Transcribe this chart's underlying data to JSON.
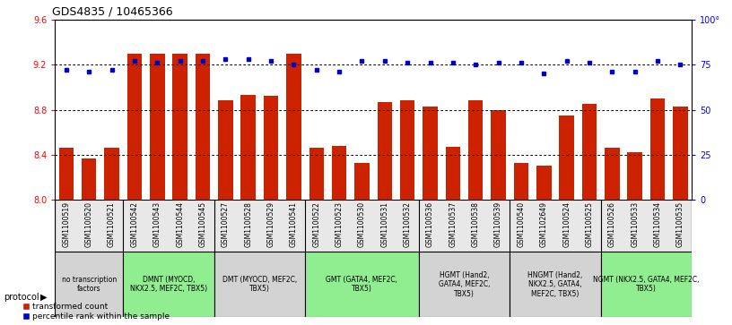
{
  "title": "GDS4835 / 10465366",
  "bar_values": [
    8.46,
    8.37,
    8.46,
    9.3,
    9.3,
    9.3,
    9.3,
    8.88,
    8.93,
    8.92,
    9.3,
    8.46,
    8.48,
    8.33,
    8.87,
    8.88,
    8.83,
    8.47,
    8.88,
    8.8,
    8.33,
    8.3,
    8.75,
    8.85,
    8.46,
    8.42,
    8.9,
    8.83
  ],
  "percentile_values": [
    72,
    71,
    72,
    77,
    76,
    77,
    77,
    78,
    78,
    77,
    75,
    72,
    71,
    77,
    77,
    76,
    76,
    76,
    75,
    76,
    76,
    70,
    77,
    76,
    71,
    71,
    77,
    75
  ],
  "sample_ids": [
    "GSM1100519",
    "GSM1100520",
    "GSM1100521",
    "GSM1100542",
    "GSM1100543",
    "GSM1100544",
    "GSM1100545",
    "GSM1100527",
    "GSM1100528",
    "GSM1100529",
    "GSM1100541",
    "GSM1100522",
    "GSM1100523",
    "GSM1100530",
    "GSM1100531",
    "GSM1100532",
    "GSM1100536",
    "GSM1100537",
    "GSM1100538",
    "GSM1100539",
    "GSM1100540",
    "GSM1102649",
    "GSM1100524",
    "GSM1100525",
    "GSM1100526",
    "GSM1100533",
    "GSM1100534",
    "GSM1100535"
  ],
  "groups": [
    {
      "label": "no transcription\nfactors",
      "start": 0,
      "end": 3,
      "color": "#d3d3d3"
    },
    {
      "label": "DMNT (MYOCD,\nNKX2.5, MEF2C, TBX5)",
      "start": 3,
      "end": 7,
      "color": "#90ee90"
    },
    {
      "label": "DMT (MYOCD, MEF2C,\nTBX5)",
      "start": 7,
      "end": 11,
      "color": "#d3d3d3"
    },
    {
      "label": "GMT (GATA4, MEF2C,\nTBX5)",
      "start": 11,
      "end": 16,
      "color": "#90ee90"
    },
    {
      "label": "HGMT (Hand2,\nGATA4, MEF2C,\nTBX5)",
      "start": 16,
      "end": 20,
      "color": "#d3d3d3"
    },
    {
      "label": "HNGMT (Hand2,\nNKX2.5, GATA4,\nMEF2C, TBX5)",
      "start": 20,
      "end": 24,
      "color": "#d3d3d3"
    },
    {
      "label": "NGMT (NKX2.5, GATA4, MEF2C,\nTBX5)",
      "start": 24,
      "end": 28,
      "color": "#90ee90"
    }
  ],
  "ylim_left": [
    8.0,
    9.6
  ],
  "ylim_right": [
    0,
    100
  ],
  "yticks_left": [
    8.0,
    8.4,
    8.8,
    9.2,
    9.6
  ],
  "yticks_right": [
    0,
    25,
    50,
    75,
    100
  ],
  "bar_color": "#cc2200",
  "dot_color": "#0000cc"
}
